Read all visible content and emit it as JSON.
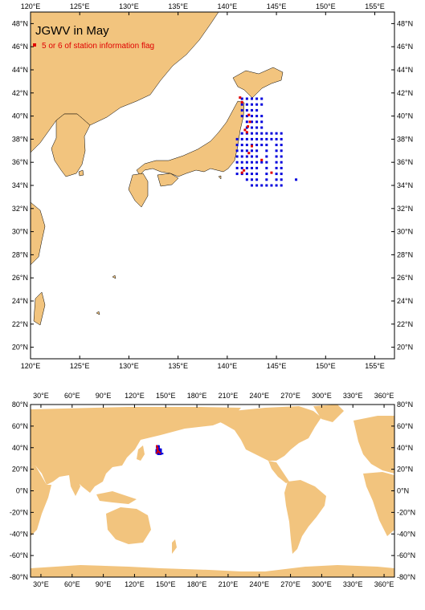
{
  "colors": {
    "land": "#f2c47e",
    "ocean": "#ffffff",
    "station": "#0000dd",
    "flagged": "#e00000",
    "frame": "#000000"
  },
  "regional_map": {
    "title": "JGWV in May",
    "legend_label": "5 or 6 of station information flag",
    "lon_range": [
      120,
      157
    ],
    "lat_range": [
      19,
      49
    ],
    "lon_ticks": [
      "120°E",
      "125°E",
      "130°E",
      "135°E",
      "140°E",
      "145°E",
      "150°E",
      "155°E"
    ],
    "lat_ticks": [
      "20°N",
      "22°N",
      "24°N",
      "26°N",
      "28°N",
      "30°N",
      "32°N",
      "34°N",
      "36°N",
      "38°N",
      "40°N",
      "42°N",
      "44°N",
      "46°N",
      "48°N"
    ]
  },
  "global_map": {
    "lon_range": [
      20,
      370
    ],
    "lat_range": [
      -80,
      80
    ],
    "lon_ticks": [
      "30°E",
      "60°E",
      "90°E",
      "120°E",
      "150°E",
      "180°E",
      "210°E",
      "240°E",
      "270°E",
      "300°E",
      "330°E",
      "360°E"
    ],
    "lat_ticks": [
      "80°N",
      "60°N",
      "40°N",
      "20°N",
      "0°N",
      "-20°N",
      "-40°N",
      "-60°N",
      "-80°N"
    ]
  },
  "chart_data": {
    "type": "scatter",
    "series": [
      {
        "name": "",
        "points": [
          [
            141.5,
            41.5
          ],
          [
            142,
            41.5
          ],
          [
            142.5,
            41.5
          ],
          [
            143,
            41.5
          ],
          [
            143.5,
            41.5
          ],
          [
            141.5,
            41
          ],
          [
            142,
            41
          ],
          [
            142.5,
            41
          ],
          [
            143,
            41
          ],
          [
            143.5,
            41
          ],
          [
            141.5,
            40.5
          ],
          [
            142,
            40.5
          ],
          [
            142.5,
            40.5
          ],
          [
            143,
            40.5
          ],
          [
            141.5,
            40
          ],
          [
            142,
            40
          ],
          [
            142.5,
            40
          ],
          [
            143,
            40
          ],
          [
            143.5,
            40
          ],
          [
            142,
            39.5
          ],
          [
            142.5,
            39.5
          ],
          [
            143,
            39.5
          ],
          [
            143.5,
            39.5
          ],
          [
            142,
            39
          ],
          [
            142.5,
            39
          ],
          [
            143,
            39
          ],
          [
            143.5,
            39
          ],
          [
            141.5,
            38.5
          ],
          [
            142,
            38.5
          ],
          [
            142.5,
            38.5
          ],
          [
            143,
            38.5
          ],
          [
            143.5,
            38.5
          ],
          [
            144,
            38.5
          ],
          [
            144.5,
            38.5
          ],
          [
            145,
            38.5
          ],
          [
            145.5,
            38.5
          ],
          [
            141,
            38
          ],
          [
            141.5,
            38
          ],
          [
            142,
            38
          ],
          [
            142.5,
            38
          ],
          [
            143,
            38
          ],
          [
            143.5,
            38
          ],
          [
            144,
            38
          ],
          [
            144.5,
            38
          ],
          [
            145,
            38
          ],
          [
            145.5,
            38
          ],
          [
            141,
            37.5
          ],
          [
            141.5,
            37.5
          ],
          [
            142,
            37.5
          ],
          [
            142.5,
            37.5
          ],
          [
            143,
            37.5
          ],
          [
            143.5,
            37.5
          ],
          [
            144,
            37.5
          ],
          [
            145,
            37.5
          ],
          [
            145.5,
            37.5
          ],
          [
            141,
            37
          ],
          [
            141.5,
            37
          ],
          [
            142,
            37
          ],
          [
            142.5,
            37
          ],
          [
            143,
            37
          ],
          [
            144,
            37
          ],
          [
            145,
            37
          ],
          [
            145.5,
            37
          ],
          [
            141,
            36.5
          ],
          [
            141.5,
            36.5
          ],
          [
            142,
            36.5
          ],
          [
            142.5,
            36.5
          ],
          [
            143,
            36.5
          ],
          [
            144,
            36.5
          ],
          [
            145,
            36.5
          ],
          [
            145.5,
            36.5
          ],
          [
            141,
            36
          ],
          [
            141.5,
            36
          ],
          [
            142,
            36
          ],
          [
            142.5,
            36
          ],
          [
            143,
            36
          ],
          [
            143.5,
            36
          ],
          [
            144,
            36
          ],
          [
            145,
            36
          ],
          [
            145.5,
            36
          ],
          [
            141,
            35.5
          ],
          [
            141.5,
            35.5
          ],
          [
            142,
            35.5
          ],
          [
            142.5,
            35.5
          ],
          [
            143,
            35.5
          ],
          [
            144,
            35.5
          ],
          [
            145,
            35.5
          ],
          [
            145.5,
            35.5
          ],
          [
            141,
            35
          ],
          [
            141.5,
            35
          ],
          [
            142,
            35
          ],
          [
            142.5,
            35
          ],
          [
            143,
            35
          ],
          [
            144,
            35
          ],
          [
            145,
            35
          ],
          [
            145.5,
            35
          ],
          [
            142,
            34.5
          ],
          [
            142.5,
            34.5
          ],
          [
            143,
            34.5
          ],
          [
            144,
            34.5
          ],
          [
            145,
            34.5
          ],
          [
            145.5,
            34.5
          ],
          [
            147,
            34.5
          ],
          [
            142.5,
            34
          ],
          [
            143,
            34
          ],
          [
            143.5,
            34
          ],
          [
            144,
            34
          ],
          [
            144.5,
            34
          ],
          [
            145,
            34
          ],
          [
            145.5,
            34
          ]
        ]
      },
      {
        "name": "5 or 6 of station information flag",
        "points": [
          [
            141.3,
            41.6
          ],
          [
            141.5,
            41.2
          ],
          [
            142.2,
            40.1
          ],
          [
            142.3,
            39.5
          ],
          [
            142.1,
            39.1
          ],
          [
            141.8,
            38.8
          ],
          [
            142,
            38.6
          ],
          [
            142.5,
            37.4
          ],
          [
            142.2,
            36.8
          ],
          [
            141.7,
            35.3
          ],
          [
            141.5,
            35.1
          ],
          [
            143.5,
            36.2
          ],
          [
            144.5,
            35.1
          ]
        ]
      }
    ]
  }
}
